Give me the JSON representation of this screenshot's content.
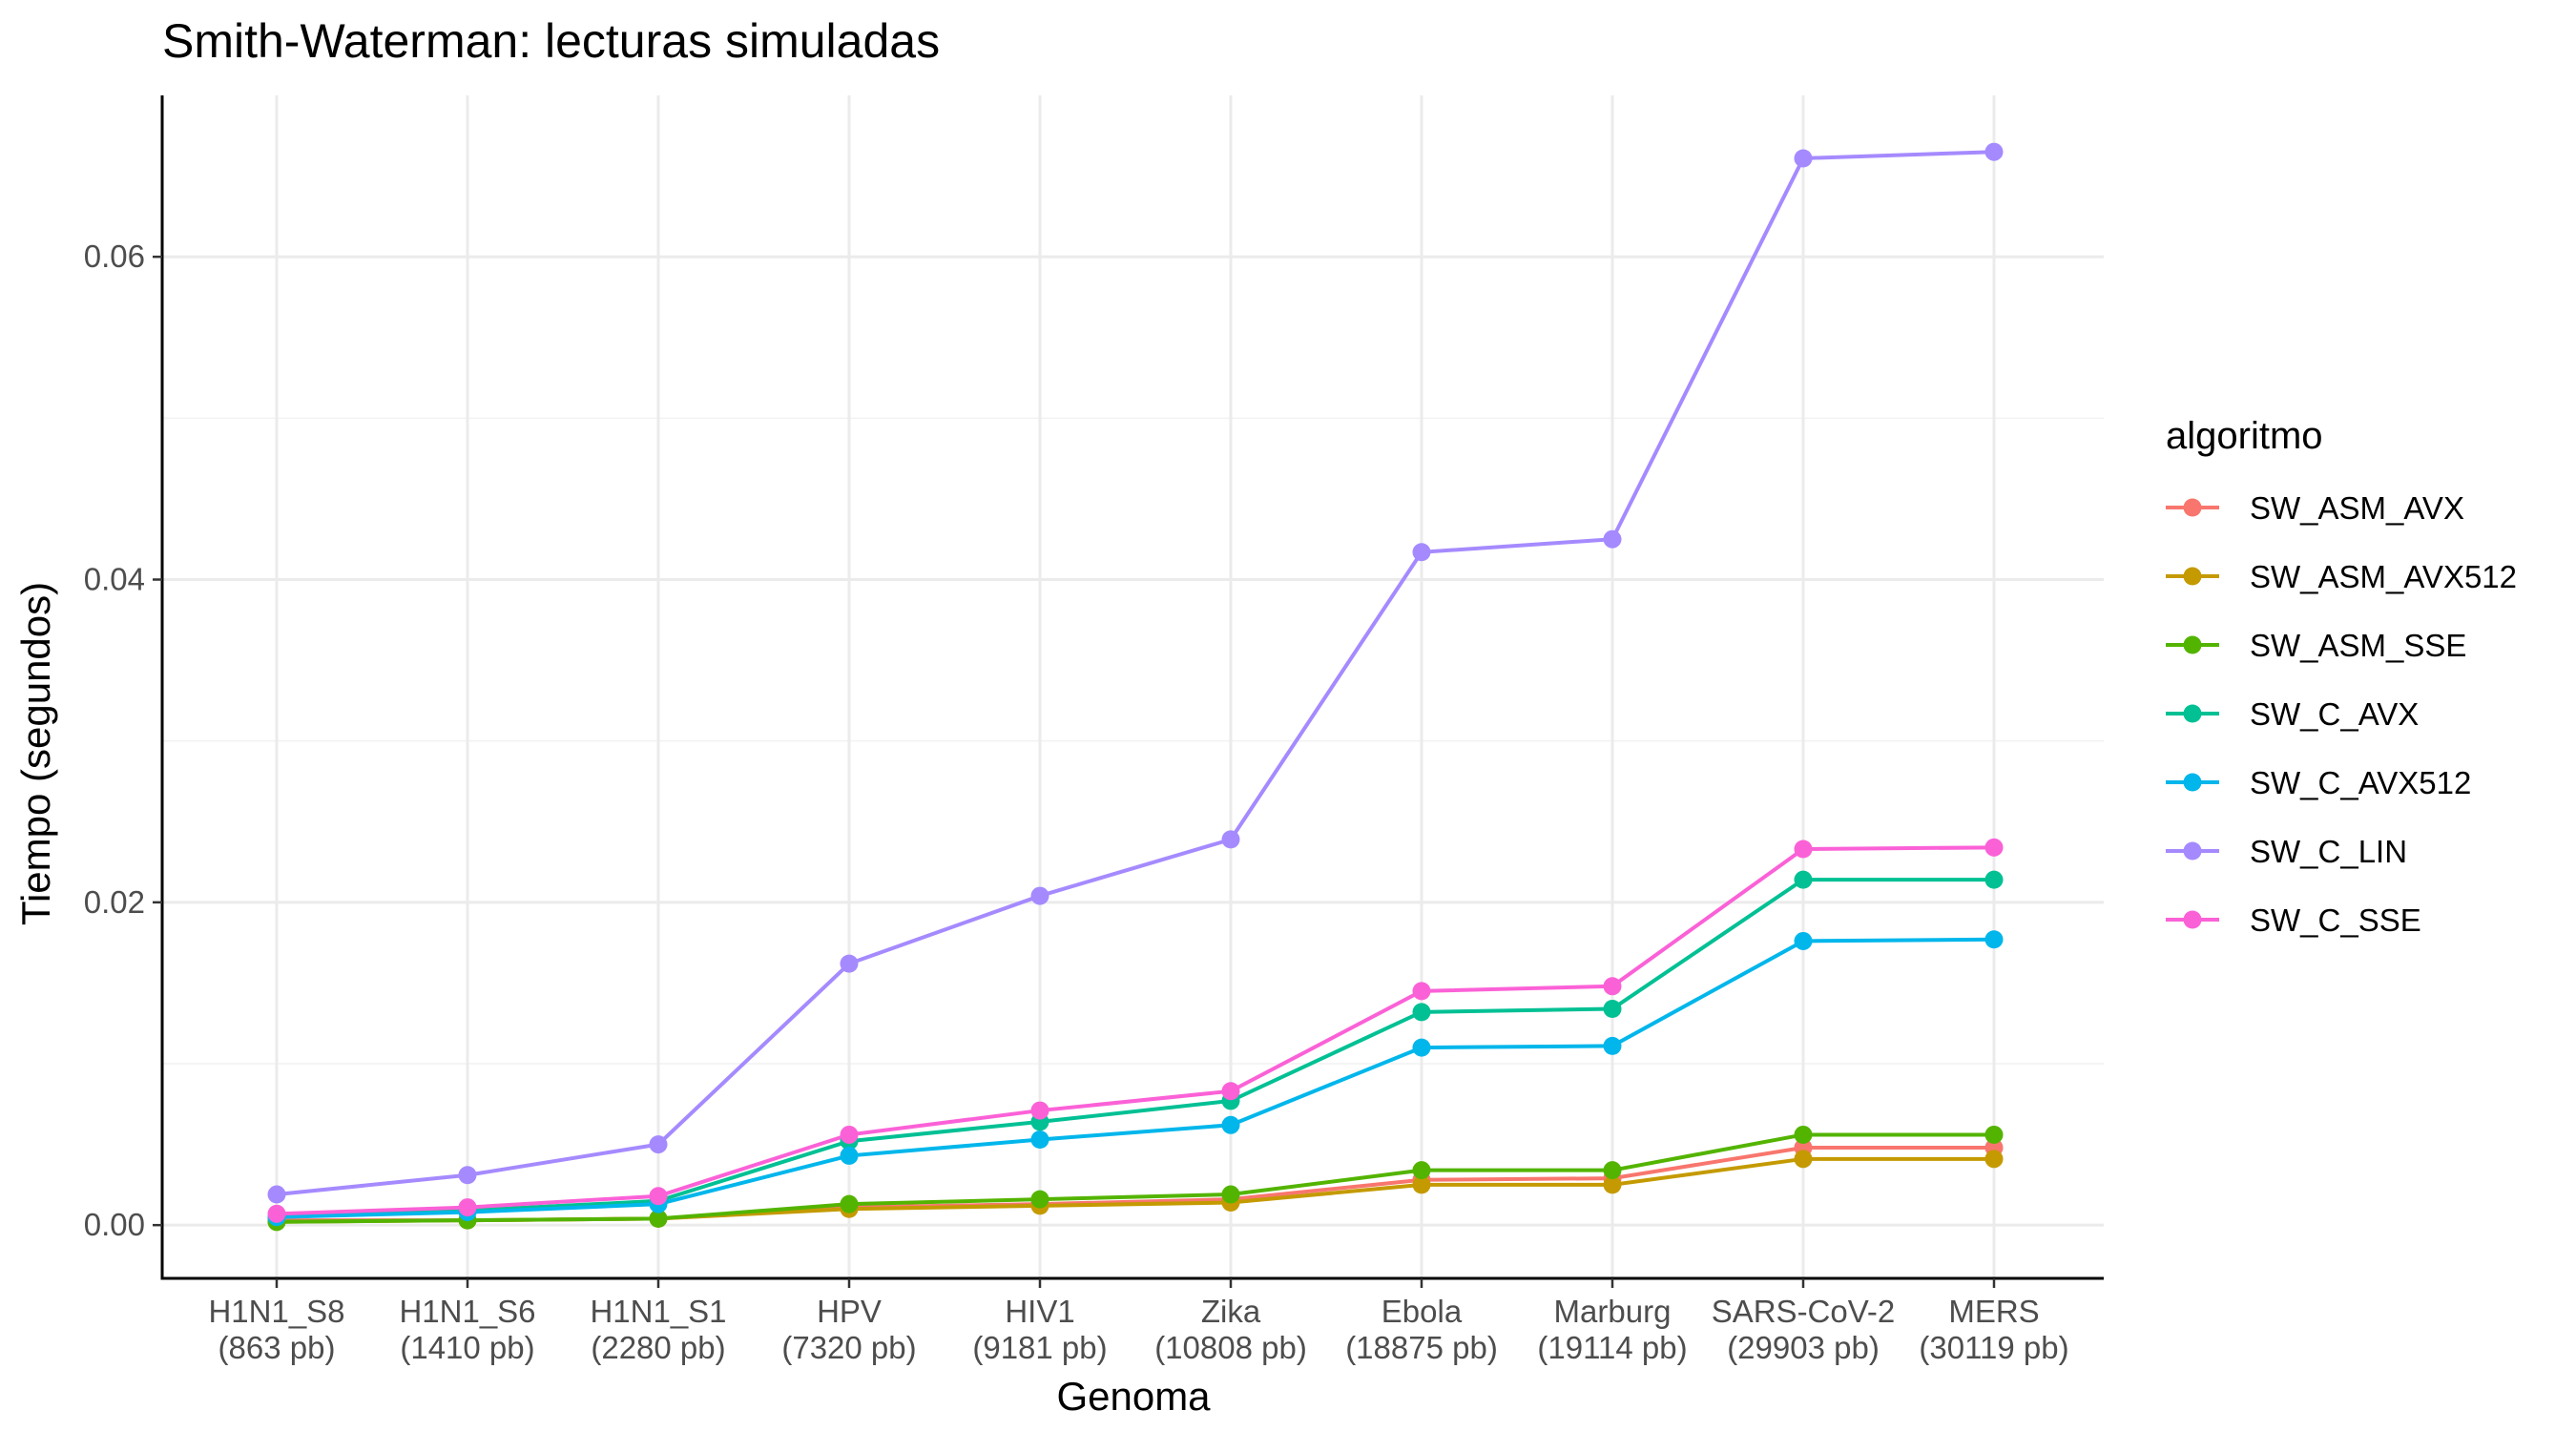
{
  "chart_data": {
    "type": "line",
    "title": "Smith-Waterman: lecturas simuladas",
    "xlabel": "Genoma",
    "ylabel": "Tiempo (segundos)",
    "categories": [
      [
        "H1N1_S8",
        "(863 pb)"
      ],
      [
        "H1N1_S6",
        "(1410 pb)"
      ],
      [
        "H1N1_S1",
        "(2280 pb)"
      ],
      [
        "HPV",
        "(7320 pb)"
      ],
      [
        "HIV1",
        "(9181 pb)"
      ],
      [
        "Zika",
        "(10808 pb)"
      ],
      [
        "Ebola",
        "(18875 pb)"
      ],
      [
        "Marburg",
        "(19114 pb)"
      ],
      [
        "SARS-CoV-2",
        "(29903 pb)"
      ],
      [
        "MERS",
        "(30119 pb)"
      ]
    ],
    "ylim": [
      -0.0033,
      0.07
    ],
    "yticks": [
      0.0,
      0.02,
      0.04,
      0.06
    ],
    "ytick_labels": [
      "0.00",
      "0.02",
      "0.04",
      "0.06"
    ],
    "grid": true,
    "legend": {
      "title": "algoritmo",
      "position": "right"
    },
    "series": [
      {
        "name": "SW_ASM_AVX",
        "color": "#F8766D",
        "values": [
          0.0003,
          0.0003,
          0.0004,
          0.0011,
          0.0013,
          0.0016,
          0.0028,
          0.0029,
          0.0048,
          0.0048
        ]
      },
      {
        "name": "SW_ASM_AVX512",
        "color": "#C49A00",
        "values": [
          0.0002,
          0.0003,
          0.0004,
          0.001,
          0.0012,
          0.0014,
          0.0025,
          0.0025,
          0.0041,
          0.0041
        ]
      },
      {
        "name": "SW_ASM_SSE",
        "color": "#53B400",
        "values": [
          0.0002,
          0.0003,
          0.0004,
          0.0013,
          0.0016,
          0.0019,
          0.0034,
          0.0034,
          0.0056,
          0.0056
        ]
      },
      {
        "name": "SW_C_AVX",
        "color": "#00C094",
        "values": [
          0.0005,
          0.0009,
          0.0015,
          0.0052,
          0.0064,
          0.0077,
          0.0132,
          0.0134,
          0.0214,
          0.0214
        ]
      },
      {
        "name": "SW_C_AVX512",
        "color": "#00B6EB",
        "values": [
          0.0005,
          0.0008,
          0.0013,
          0.0043,
          0.0053,
          0.0062,
          0.011,
          0.0111,
          0.0176,
          0.0177
        ]
      },
      {
        "name": "SW_C_LIN",
        "color": "#A58AFF",
        "values": [
          0.0019,
          0.0031,
          0.005,
          0.0162,
          0.0204,
          0.0239,
          0.0417,
          0.0425,
          0.0661,
          0.0665
        ]
      },
      {
        "name": "SW_C_SSE",
        "color": "#FB61D7",
        "values": [
          0.0007,
          0.0011,
          0.0018,
          0.0056,
          0.0071,
          0.0083,
          0.0145,
          0.0148,
          0.0233,
          0.0234
        ]
      }
    ]
  }
}
